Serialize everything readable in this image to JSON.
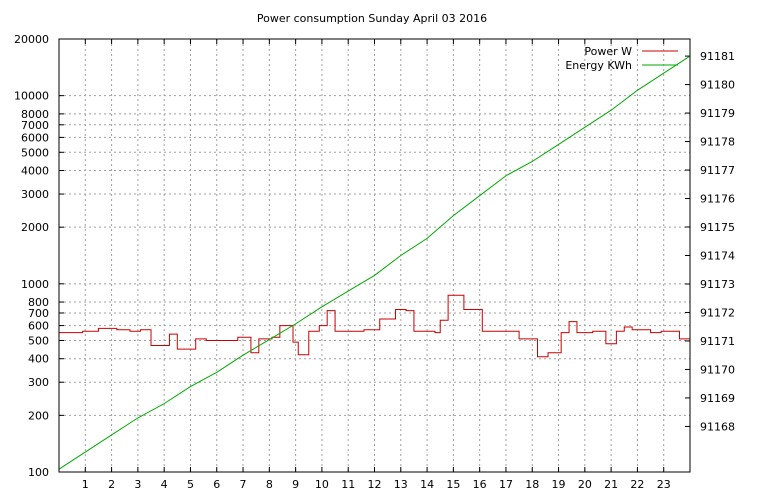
{
  "chart_data": {
    "type": "line",
    "title": "Power consumption Sunday April 03 2016",
    "x_ticks": [
      1,
      2,
      3,
      4,
      5,
      6,
      7,
      8,
      9,
      10,
      11,
      12,
      13,
      14,
      15,
      16,
      17,
      18,
      19,
      20,
      21,
      22,
      23
    ],
    "xlim": [
      0,
      24
    ],
    "y_left": {
      "scale": "log",
      "ylim": [
        100,
        20000
      ],
      "ticks": [
        100,
        200,
        300,
        400,
        500,
        600,
        700,
        800,
        1000,
        2000,
        3000,
        4000,
        5000,
        6000,
        7000,
        8000,
        10000,
        20000
      ]
    },
    "y_right": {
      "scale": "linear",
      "ylim": [
        91166.4,
        91181.6
      ],
      "ticks": [
        91168,
        91169,
        91170,
        91171,
        91172,
        91173,
        91174,
        91175,
        91176,
        91177,
        91178,
        91179,
        91180,
        91181
      ]
    },
    "grid": true,
    "legend_position": "top-right",
    "series": [
      {
        "name": "Power W",
        "axis": "left",
        "color": "#cc0000",
        "x": [
          0,
          0.3,
          0.9,
          1.3,
          1.5,
          2.2,
          2.7,
          3.1,
          3.5,
          3.6,
          4.2,
          4.5,
          5.2,
          5.6,
          6.4,
          6.8,
          7.3,
          7.6,
          8.1,
          8.4,
          8.9,
          9.1,
          9.5,
          9.9,
          10.2,
          10.5,
          11.1,
          11.6,
          12.1,
          12.2,
          12.8,
          13.2,
          13.5,
          14.1,
          14.3,
          14.5,
          14.8,
          15.4,
          16.1,
          16.6,
          17.2,
          17.5,
          18.2,
          18.6,
          19.1,
          19.4,
          19.7,
          20.3,
          20.8,
          21.2,
          21.5,
          21.8,
          22.5,
          22.9,
          23.6,
          24
        ],
        "y": [
          550,
          550,
          560,
          560,
          580,
          570,
          560,
          570,
          470,
          470,
          540,
          450,
          510,
          500,
          500,
          520,
          430,
          510,
          520,
          600,
          490,
          420,
          560,
          600,
          720,
          560,
          560,
          570,
          570,
          650,
          730,
          720,
          560,
          560,
          550,
          640,
          870,
          730,
          560,
          560,
          560,
          510,
          410,
          430,
          550,
          630,
          550,
          560,
          480,
          560,
          590,
          570,
          550,
          560,
          510,
          500
        ]
      },
      {
        "name": "Energy KWh",
        "axis": "right",
        "color": "#00aa00",
        "x": [
          0,
          1,
          2,
          3,
          4,
          5,
          6,
          7,
          8,
          9,
          10,
          11,
          12,
          13,
          14,
          15,
          16,
          17,
          18,
          19,
          20,
          21,
          22,
          23,
          24
        ],
        "y": [
          91166.5,
          91167.1,
          91167.7,
          91168.3,
          91168.8,
          91169.4,
          91169.9,
          91170.5,
          91171.05,
          91171.6,
          91172.2,
          91172.75,
          91173.3,
          91174,
          91174.6,
          91175.4,
          91176.1,
          91176.8,
          91177.3,
          91177.9,
          91178.5,
          91179.1,
          91179.8,
          91180.4,
          91181
        ]
      }
    ]
  }
}
